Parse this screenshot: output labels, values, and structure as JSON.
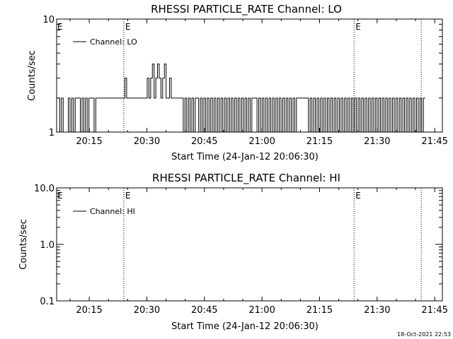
{
  "footer": {
    "timestamp": "18-Oct-2021 22:53"
  },
  "chart_data": [
    {
      "type": "line",
      "title": "RHESSI PARTICLE_RATE Channel: LO",
      "xlabel": "Start Time (24-Jan-12 20:06:30)",
      "ylabel": "Counts/sec",
      "yscale": "log",
      "ylim": [
        1,
        10
      ],
      "yticks": [
        1,
        10
      ],
      "ytick_labels": [
        "1",
        "10"
      ],
      "xlim": [
        "20:06:30",
        "21:47:00"
      ],
      "xtick_labels": [
        "20:15",
        "20:30",
        "20:45",
        "21:00",
        "21:15",
        "21:30",
        "21:45"
      ],
      "legend": {
        "label": "Channel: LO",
        "position": "top-left"
      },
      "event_markers": [
        {
          "time": "20:24:00",
          "label": "E"
        },
        {
          "time": "21:24:00",
          "label": "E"
        },
        {
          "time": "21:41:30",
          "label": ""
        }
      ],
      "series": [
        {
          "name": "Channel: LO",
          "step_levels": [
            2,
            1,
            2,
            1,
            1,
            1,
            2,
            1,
            2,
            1,
            2,
            2,
            2,
            1,
            2,
            1,
            2,
            1,
            2,
            2,
            2,
            1,
            2,
            2,
            2,
            2,
            2,
            2,
            2,
            2,
            2,
            2,
            2,
            2,
            2,
            2,
            2,
            2,
            2,
            3,
            2,
            2,
            2,
            2,
            2,
            2,
            2,
            2,
            2,
            2,
            2,
            2,
            3,
            2,
            3,
            4,
            2,
            3,
            4,
            3,
            2,
            3,
            4,
            2,
            2,
            3,
            2,
            2,
            2,
            2,
            2,
            2,
            2,
            1,
            2,
            1,
            2,
            1,
            2,
            1,
            2,
            2,
            1,
            2,
            1,
            2,
            1,
            2,
            1,
            2,
            1,
            2,
            1,
            2,
            1,
            2,
            1,
            2,
            1,
            2,
            1,
            2,
            1,
            2,
            1,
            2,
            1,
            2,
            1,
            2,
            1,
            2,
            1,
            2,
            2,
            2,
            1,
            2,
            1,
            2,
            1,
            2,
            1,
            2,
            1,
            2,
            1,
            2,
            1,
            2,
            1,
            2,
            1,
            2,
            1,
            2,
            1,
            2,
            1,
            2,
            2,
            2,
            2,
            2,
            2,
            2,
            1,
            2,
            1,
            2,
            1,
            2,
            1,
            2,
            1,
            2,
            1,
            2,
            1,
            2,
            1,
            2,
            1,
            2,
            1,
            2,
            1,
            2,
            1,
            2,
            1,
            2,
            1,
            2,
            1,
            2,
            1,
            2,
            1,
            2,
            1,
            2,
            1,
            2,
            1,
            2,
            1,
            2,
            1,
            2,
            1,
            2,
            1,
            2,
            1,
            2,
            1,
            2,
            1,
            2,
            1,
            2,
            1,
            2,
            1,
            2,
            1,
            2,
            1,
            2,
            1,
            2,
            1,
            2
          ]
        }
      ]
    },
    {
      "type": "line",
      "title": "RHESSI PARTICLE_RATE Channel: HI",
      "xlabel": "Start Time (24-Jan-12 20:06:30)",
      "ylabel": "Counts/sec",
      "yscale": "log",
      "ylim": [
        0.1,
        10
      ],
      "yticks": [
        0.1,
        1,
        10
      ],
      "ytick_labels": [
        "0.1",
        "1.0",
        "10.0"
      ],
      "xlim": [
        "20:06:30",
        "21:47:00"
      ],
      "xtick_labels": [
        "20:15",
        "20:30",
        "20:45",
        "21:00",
        "21:15",
        "21:30",
        "21:45"
      ],
      "legend": {
        "label": "Channel: HI",
        "position": "top-left"
      },
      "event_markers": [
        {
          "time": "20:24:00",
          "label": "E"
        },
        {
          "time": "21:24:00",
          "label": "E"
        },
        {
          "time": "21:41:30",
          "label": ""
        }
      ],
      "series": [
        {
          "name": "Channel: HI",
          "step_levels": []
        }
      ]
    }
  ]
}
